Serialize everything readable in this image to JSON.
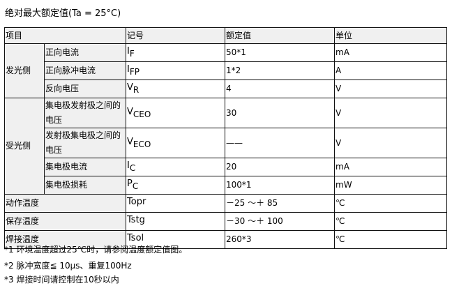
{
  "title": "绝对最大额定值(Ta = 25°C)",
  "headers": {
    "item": "项目",
    "symbol": "记号",
    "rating": "额定值",
    "unit": "单位"
  },
  "groups": {
    "emitter": "发光侧",
    "detector": "受光侧"
  },
  "rows": [
    {
      "item": "正向电流",
      "sym": "I",
      "sub": "F",
      "rating": "50*1",
      "unit": "mA"
    },
    {
      "item": "正向脉冲电流",
      "sym": "I",
      "sub": "FP",
      "rating": "1*2",
      "unit": "A"
    },
    {
      "item": "反向电压",
      "sym": "V",
      "sub": "R",
      "rating": "4",
      "unit": "V"
    },
    {
      "item": "集电极发射极之间的电压",
      "sym": "V",
      "sub": "CEO",
      "rating": "30",
      "unit": "V"
    },
    {
      "item": "发射极集电极之间的电压",
      "sym": "V",
      "sub": "ECO",
      "rating": "——",
      "unit": "V"
    },
    {
      "item": "集电极电流",
      "sym": "I",
      "sub": "C",
      "rating": "20",
      "unit": "mA"
    },
    {
      "item": "集电极损耗",
      "sym": "P",
      "sub": "C",
      "rating": "100*1",
      "unit": "mW"
    },
    {
      "item": "动作温度",
      "sym": "Topr",
      "sub": "",
      "rating": "－25 ～＋ 85",
      "unit": "℃"
    },
    {
      "item": "保存温度",
      "sym": "Tstg",
      "sub": "",
      "rating": "－30 ～＋ 100",
      "unit": "℃"
    },
    {
      "item": "焊接温度",
      "sym": "Tsol",
      "sub": "",
      "rating": "260*3",
      "unit": "℃"
    }
  ],
  "notes": [
    "*1 环境温度超过25℃时，请参阅温度额定值图。",
    "*2 脉冲宽度≦ 10μs、重复100Hz",
    "*3 焊接时间请控制在10秒以内"
  ]
}
